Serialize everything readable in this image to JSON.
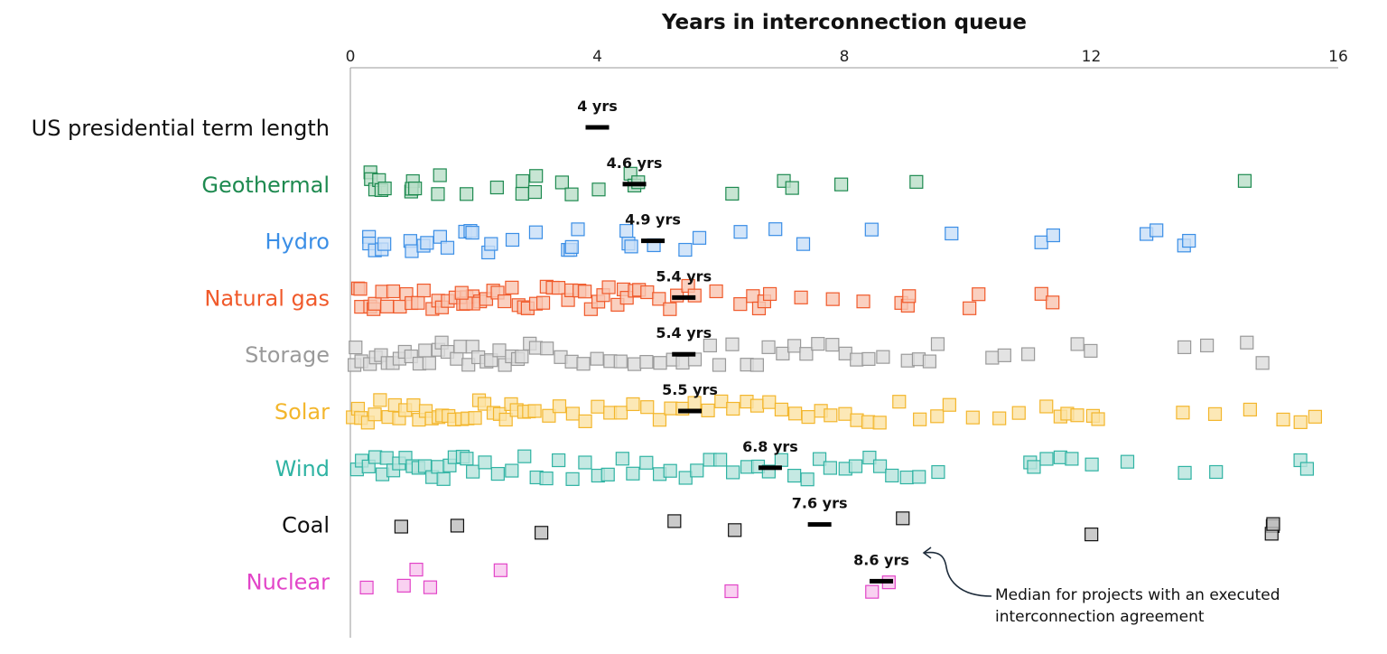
{
  "chart_data": {
    "type": "scatter",
    "title": "Years in interconnection queue",
    "xlabel": "Years in interconnection queue",
    "xlim": [
      0,
      16
    ],
    "x_ticks": [
      "0",
      "4",
      "8",
      "12",
      "16"
    ],
    "grid": false,
    "annotation": [
      "Median for projects with an executed",
      "interconnection agreement"
    ],
    "median_suffix": " yrs",
    "series": [
      {
        "name": "US presidential term length",
        "color": "#111111",
        "fill": "#111111",
        "median": 4,
        "median_label": "4 yrs",
        "values": []
      },
      {
        "name": "Geothermal",
        "color": "#1e8a50",
        "fill": "#b9dfc8",
        "median": 4.6,
        "median_label": "4.6 yrs",
        "values": [
          0.3,
          0.35,
          0.4,
          0.45,
          0.5,
          0.55,
          1.0,
          1.0,
          1.02,
          1.05,
          1.4,
          1.45,
          1.87,
          2.37,
          2.76,
          2.8,
          3.0,
          3.02,
          3.44,
          3.58,
          4.0,
          4.55,
          4.6,
          4.68,
          6.21,
          7.03,
          7.13,
          7.97,
          9.18,
          14.49
        ]
      },
      {
        "name": "Hydro",
        "color": "#3a8ee6",
        "fill": "#c8def7",
        "median": 4.9,
        "median_label": "4.9 yrs",
        "values": [
          0.3,
          0.32,
          0.4,
          0.5,
          0.55,
          0.96,
          1.0,
          1.2,
          1.25,
          1.46,
          1.55,
          1.84,
          1.95,
          2.0,
          2.25,
          2.3,
          2.62,
          2.98,
          3.5,
          3.54,
          3.6,
          3.7,
          4.5,
          4.52,
          4.55,
          4.93,
          5.44,
          5.63,
          6.32,
          6.86,
          7.31,
          8.42,
          9.71,
          11.18,
          11.4,
          12.89,
          13.04,
          13.49,
          13.61
        ]
      },
      {
        "name": "Natural gas",
        "color": "#f0592a",
        "fill": "#f9c4b0",
        "median": 5.4,
        "median_label": "5.4 yrs",
        "values": [
          0.1,
          0.15,
          0.2,
          0.3,
          0.35,
          0.4,
          0.5,
          0.6,
          0.7,
          0.8,
          0.9,
          1.0,
          1.1,
          1.2,
          1.3,
          1.4,
          1.5,
          1.6,
          1.7,
          1.8,
          1.9,
          2.0,
          2.1,
          2.2,
          2.0,
          1.9,
          1.8,
          2.3,
          2.4,
          2.5,
          2.6,
          2.7,
          2.8,
          2.9,
          3.0,
          3.1,
          3.2,
          3.3,
          3.4,
          3.5,
          3.6,
          3.7,
          3.8,
          3.9,
          4.0,
          4.1,
          4.2,
          4.3,
          4.4,
          4.5,
          4.6,
          4.7,
          4.8,
          5.0,
          5.2,
          5.3,
          5.5,
          5.6,
          5.9,
          6.3,
          6.5,
          6.6,
          6.7,
          6.8,
          7.3,
          7.8,
          8.3,
          8.9,
          9.0,
          9.05,
          10.0,
          10.2,
          11.17,
          11.36
        ]
      },
      {
        "name": "Storage",
        "color": "#9a9a9a",
        "fill": "#dcdcdc",
        "median": 5.4,
        "median_label": "5.4 yrs",
        "values": [
          0.05,
          0.1,
          0.2,
          0.3,
          0.4,
          0.5,
          0.6,
          0.7,
          0.8,
          0.9,
          1.0,
          1.1,
          1.2,
          1.3,
          1.4,
          1.5,
          1.6,
          1.7,
          1.8,
          1.9,
          2.0,
          2.1,
          2.2,
          2.3,
          2.4,
          2.5,
          2.6,
          2.7,
          2.8,
          2.9,
          3.0,
          3.2,
          3.4,
          3.6,
          3.8,
          4.0,
          4.2,
          4.4,
          4.6,
          4.8,
          5.0,
          5.2,
          5.4,
          5.6,
          5.8,
          6.0,
          6.2,
          6.4,
          6.6,
          6.8,
          7.0,
          7.2,
          7.4,
          7.6,
          7.8,
          8.0,
          8.2,
          8.4,
          8.6,
          9.0,
          9.2,
          9.4,
          9.5,
          10.4,
          10.6,
          11.0,
          11.8,
          12.0,
          13.5,
          13.9,
          14.5,
          14.8
        ]
      },
      {
        "name": "Solar",
        "color": "#f3b62c",
        "fill": "#fbe2a4",
        "median": 5.5,
        "median_label": "5.5 yrs",
        "values": [
          0.05,
          0.1,
          0.2,
          0.3,
          0.4,
          0.5,
          0.6,
          0.7,
          0.8,
          0.9,
          1.0,
          1.1,
          1.2,
          1.3,
          1.4,
          1.5,
          1.6,
          1.7,
          1.8,
          1.9,
          2.0,
          2.1,
          2.2,
          2.3,
          2.4,
          2.5,
          2.6,
          2.7,
          2.8,
          2.9,
          3.0,
          3.2,
          3.4,
          3.6,
          3.8,
          4.0,
          4.2,
          4.4,
          4.6,
          4.8,
          5.0,
          5.2,
          5.4,
          5.6,
          5.8,
          6.0,
          6.2,
          6.4,
          6.6,
          6.8,
          7.0,
          7.2,
          7.4,
          7.6,
          7.8,
          8.0,
          8.2,
          8.4,
          8.6,
          8.9,
          9.2,
          9.5,
          9.7,
          10.1,
          10.5,
          10.8,
          11.3,
          11.5,
          11.6,
          11.8,
          12.0,
          12.1,
          13.5,
          14.0,
          14.6,
          15.1,
          15.4,
          15.6
        ]
      },
      {
        "name": "Wind",
        "color": "#2fb3a3",
        "fill": "#b6e3dc",
        "median": 6.8,
        "median_label": "6.8 yrs",
        "values": [
          0.1,
          0.2,
          0.3,
          0.4,
          0.5,
          0.6,
          0.7,
          0.8,
          0.9,
          1.0,
          1.1,
          1.2,
          1.3,
          1.4,
          1.5,
          1.6,
          1.7,
          1.8,
          1.9,
          2.0,
          2.2,
          2.4,
          2.6,
          2.8,
          3.0,
          3.2,
          3.4,
          3.6,
          3.8,
          4.0,
          4.2,
          4.4,
          4.6,
          4.8,
          5.0,
          5.2,
          5.4,
          5.6,
          5.8,
          6.0,
          6.2,
          6.4,
          6.6,
          6.8,
          7.0,
          7.2,
          7.4,
          7.6,
          7.8,
          8.0,
          8.2,
          8.4,
          8.6,
          8.8,
          9.0,
          9.2,
          9.5,
          11.0,
          11.1,
          11.3,
          11.5,
          11.7,
          12.0,
          12.6,
          13.5,
          14.0,
          15.4,
          15.5
        ]
      },
      {
        "name": "Coal",
        "color": "#111111",
        "fill": "#bdbdbd",
        "median": 7.6,
        "median_label": "7.6 yrs",
        "values": [
          0.83,
          1.71,
          3.1,
          5.22,
          6.2,
          8.92,
          11.99,
          14.93,
          14.94,
          14.95
        ]
      },
      {
        "name": "Nuclear",
        "color": "#e244c8",
        "fill": "#f7c6ee",
        "median": 8.6,
        "median_label": "8.6 yrs",
        "values": [
          0.25,
          0.86,
          1.08,
          1.29,
          2.43,
          6.2,
          8.44,
          8.7
        ]
      }
    ]
  }
}
